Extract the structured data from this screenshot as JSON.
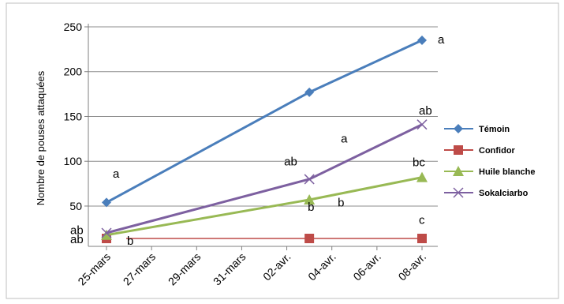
{
  "chart_data": {
    "type": "line",
    "ylabel": "Nombre de pouses attaquées",
    "xlabel": "",
    "title": "",
    "ylim": [
      20,
      250
    ],
    "yticks": [
      50,
      100,
      150,
      200,
      250
    ],
    "x_ticks": [
      "25-mars",
      "27-mars",
      "29-mars",
      "31-mars",
      "02-avr.",
      "04-avr.",
      "06-avr.",
      "08-avr."
    ],
    "x_dates": [
      "03-25",
      "03-27",
      "03-29",
      "03-31",
      "04-02",
      "04-04",
      "04-06",
      "04-08"
    ],
    "grid": true,
    "legend_position": "right",
    "series": [
      {
        "name": "Témoin",
        "color": "#4a7ebb",
        "marker": "diamond",
        "points": [
          {
            "x": "03-25",
            "y": 54
          },
          {
            "x": "04-03",
            "y": 177
          },
          {
            "x": "04-08",
            "y": 235
          }
        ]
      },
      {
        "name": "Confidor",
        "color": "#be4b48",
        "marker": "square",
        "points": [
          {
            "x": "03-25",
            "y": 0
          },
          {
            "x": "04-03",
            "y": 0
          },
          {
            "x": "04-08",
            "y": 0
          }
        ]
      },
      {
        "name": "Huile blanche",
        "color": "#98b954",
        "marker": "triangle",
        "points": [
          {
            "x": "03-25",
            "y": 14
          },
          {
            "x": "04-03",
            "y": 57
          },
          {
            "x": "04-08",
            "y": 82
          }
        ]
      },
      {
        "name": "Sokalciarbo",
        "color": "#7d60a0",
        "marker": "x",
        "points": [
          {
            "x": "03-25",
            "y": 20
          },
          {
            "x": "04-03",
            "y": 80
          },
          {
            "x": "04-08",
            "y": 141
          }
        ]
      }
    ],
    "annotations": [
      {
        "text": "a",
        "x": "03-25",
        "y": 64
      },
      {
        "text": "ab",
        "x": "03-25",
        "y": 22
      },
      {
        "text": "ab",
        "x": "03-25",
        "y": 0
      },
      {
        "text": "b",
        "x": "03-25",
        "y": -2
      },
      {
        "text": "a",
        "x": "04-03",
        "y": 128
      },
      {
        "text": "ab",
        "x": "04-03",
        "y": 90
      },
      {
        "text": "b",
        "x": "04-03",
        "y": 20
      },
      {
        "text": "b",
        "x": "04-03",
        "y": 10
      },
      {
        "text": "a",
        "x": "04-08",
        "y": 235
      },
      {
        "text": "ab",
        "x": "04-08",
        "y": 154
      },
      {
        "text": "bc",
        "x": "04-08",
        "y": 98
      },
      {
        "text": "c",
        "x": "04-08",
        "y": 14
      }
    ]
  }
}
